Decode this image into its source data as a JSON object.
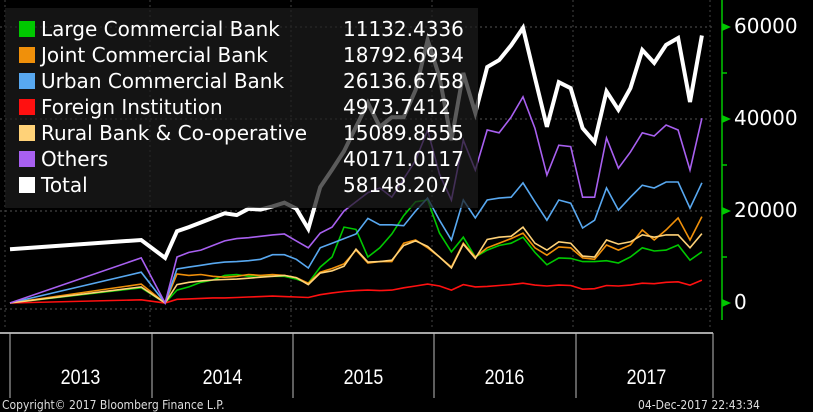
{
  "chart_data": {
    "type": "line",
    "x": [
      "2013-01",
      "2013-12",
      "2014-02",
      "2014-03",
      "2014-04",
      "2014-05",
      "2014-06",
      "2014-07",
      "2014-08",
      "2014-09",
      "2014-10",
      "2014-11",
      "2014-12",
      "2015-01",
      "2015-02",
      "2015-03",
      "2015-04",
      "2015-05",
      "2015-06",
      "2015-07",
      "2015-08",
      "2015-09",
      "2015-10",
      "2015-11",
      "2015-12",
      "2016-01",
      "2016-02",
      "2016-03",
      "2016-04",
      "2016-05",
      "2016-06",
      "2016-07",
      "2016-08",
      "2016-09",
      "2016-10",
      "2016-11",
      "2016-12",
      "2017-01",
      "2017-02",
      "2017-03",
      "2017-04",
      "2017-05",
      "2017-06",
      "2017-07",
      "2017-08",
      "2017-09",
      "2017-10",
      "2017-11"
    ],
    "series": [
      {
        "name": "Large Commercial Bank",
        "last": "11132.4336",
        "color": "#00c800",
        "values": [
          0,
          3300,
          0,
          2800,
          3500,
          4500,
          5000,
          6000,
          6200,
          5800,
          6000,
          5800,
          5800,
          5200,
          4300,
          7800,
          10000,
          16500,
          16000,
          10000,
          12000,
          15000,
          19000,
          22000,
          22400,
          15200,
          11100,
          14300,
          10000,
          11500,
          12500,
          13000,
          14300,
          11000,
          8300,
          9800,
          9700,
          9000,
          9000,
          9200,
          8700,
          10000,
          12000,
          11300,
          11500,
          12600,
          9300,
          11132.4336
        ]
      },
      {
        "name": "Joint Commercial Bank",
        "last": "18792.6934",
        "color": "#f0900a",
        "values": [
          0,
          4100,
          0,
          6300,
          6000,
          6200,
          5800,
          5600,
          5800,
          6200,
          6000,
          6200,
          6000,
          5500,
          4300,
          6700,
          7500,
          8500,
          11500,
          8700,
          9000,
          9000,
          13000,
          13700,
          12000,
          10000,
          7800,
          13000,
          10000,
          12000,
          13000,
          14000,
          15200,
          12000,
          10400,
          12200,
          12000,
          9800,
          9500,
          12600,
          11500,
          12600,
          15900,
          13700,
          15900,
          18500,
          13700,
          18792.6934
        ]
      },
      {
        "name": "Urban Commercial Bank",
        "last": "26136.6758",
        "color": "#58a8f0",
        "values": [
          0,
          6700,
          0,
          7400,
          7800,
          8200,
          8600,
          8900,
          9000,
          9200,
          9500,
          10500,
          10500,
          9500,
          7600,
          12000,
          13000,
          14000,
          15000,
          18400,
          17000,
          17000,
          16800,
          20000,
          22800,
          18000,
          13700,
          22400,
          18500,
          22400,
          22800,
          23000,
          26100,
          22000,
          18000,
          22400,
          21700,
          16300,
          18000,
          25000,
          20200,
          23000,
          25600,
          25000,
          26300,
          26300,
          20600,
          26136.6758
        ]
      },
      {
        "name": "Foreign Institution",
        "last": "4973.7412",
        "color": "#ff1010",
        "values": [
          0,
          700,
          0,
          800,
          900,
          1000,
          1100,
          1100,
          1200,
          1300,
          1400,
          1500,
          1400,
          1300,
          1200,
          1800,
          2200,
          2500,
          2700,
          2800,
          2700,
          2800,
          3300,
          3700,
          4100,
          3700,
          2800,
          4000,
          3500,
          3600,
          3800,
          4000,
          4300,
          3900,
          3700,
          3900,
          3800,
          3000,
          3100,
          3800,
          3700,
          3900,
          4300,
          4200,
          4500,
          4600,
          3900,
          4973.7412
        ]
      },
      {
        "name": "Rural Bank & Co-operative",
        "last": "15089.8555",
        "color": "#ffd278",
        "values": [
          0,
          3500,
          0,
          4000,
          4500,
          4800,
          5000,
          5100,
          5200,
          5400,
          5600,
          5800,
          6000,
          5500,
          4000,
          6500,
          7000,
          8000,
          11700,
          8900,
          9000,
          9300,
          12500,
          13500,
          12300,
          10000,
          7600,
          12800,
          9700,
          13800,
          14300,
          14500,
          16500,
          13000,
          11500,
          13300,
          13000,
          10200,
          10000,
          13700,
          12800,
          13300,
          14800,
          14300,
          14800,
          14800,
          12000,
          15089.8555
        ]
      },
      {
        "name": "Others",
        "last": "40171.0117",
        "color": "#a860f0",
        "values": [
          0,
          9800,
          0,
          10000,
          11000,
          11500,
          12500,
          13500,
          14000,
          14200,
          14500,
          14800,
          15000,
          13500,
          12000,
          15200,
          16500,
          20000,
          22000,
          24000,
          25000,
          23000,
          27000,
          31000,
          37600,
          28000,
          22400,
          35400,
          28900,
          37600,
          37000,
          40400,
          44800,
          38000,
          27800,
          34300,
          34000,
          23000,
          23000,
          35900,
          29300,
          32800,
          37000,
          36300,
          38700,
          37600,
          28900,
          40171.0117
        ]
      },
      {
        "name": "Total",
        "last": "58148.207",
        "color": "#ffffff",
        "values": [
          11700,
          13700,
          9800,
          15600,
          16500,
          17500,
          18500,
          19500,
          19100,
          20500,
          20300,
          21000,
          21800,
          20500,
          16100,
          25200,
          29000,
          33000,
          38300,
          43500,
          38300,
          40400,
          40400,
          46300,
          57200,
          49100,
          35400,
          50000,
          41300,
          51300,
          52800,
          56000,
          59800,
          49000,
          38300,
          48000,
          46700,
          38000,
          35000,
          46000,
          42000,
          46700,
          55000,
          52200,
          56100,
          57600,
          43700,
          58148.207
        ]
      }
    ],
    "x_tick_labels": [
      "2013",
      "2014",
      "2015",
      "2016",
      "2017"
    ],
    "y_tick_labels": [
      "60000",
      "40000",
      "20000",
      "0"
    ],
    "ylim": [
      0,
      65000
    ],
    "y_axis_side": "right",
    "axis_color": "#00c800",
    "grid": true,
    "legend_placement": "top-left"
  },
  "footer": {
    "copyright": "Copyright© 2017 Bloomberg Finance L.P.",
    "timestamp": "04-Dec-2017 22:43:34"
  }
}
